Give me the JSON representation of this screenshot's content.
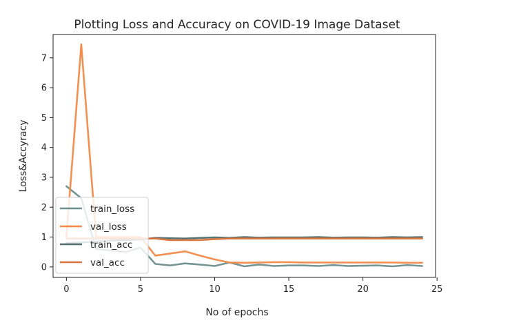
{
  "chart_data": {
    "type": "line",
    "title": "Plotting Loss and Accuracy on COVID-19 Image Dataset",
    "xlabel": "No of epochs",
    "ylabel": "Loss&Accyracy",
    "xlim": [
      -0.9,
      24.9
    ],
    "ylim": [
      -0.35,
      7.78
    ],
    "xticks": [
      0,
      5,
      10,
      15,
      20,
      25
    ],
    "yticks": [
      0,
      1,
      2,
      3,
      4,
      5,
      6,
      7
    ],
    "grid": false,
    "legend_position": "lower-left",
    "x": [
      0,
      1,
      2,
      3,
      4,
      5,
      6,
      7,
      8,
      9,
      10,
      11,
      12,
      13,
      14,
      15,
      16,
      17,
      18,
      19,
      20,
      21,
      22,
      23,
      24
    ],
    "series": [
      {
        "name": "train_loss",
        "color": "#6e8f8f",
        "values": [
          2.7,
          2.3,
          0.6,
          0.55,
          0.5,
          0.65,
          0.1,
          0.05,
          0.12,
          0.08,
          0.03,
          0.15,
          0.02,
          0.08,
          0.03,
          0.05,
          0.05,
          0.03,
          0.06,
          0.03,
          0.04,
          0.05,
          0.02,
          0.06,
          0.03
        ]
      },
      {
        "name": "val_loss",
        "color": "#f08a47",
        "values": [
          1.0,
          7.45,
          1.0,
          1.0,
          1.0,
          1.0,
          0.38,
          0.45,
          0.52,
          0.38,
          0.25,
          0.15,
          0.14,
          0.15,
          0.16,
          0.16,
          0.15,
          0.15,
          0.15,
          0.15,
          0.15,
          0.15,
          0.15,
          0.14,
          0.14
        ]
      },
      {
        "name": "train_acc",
        "color": "#4f6b6b",
        "values": [
          0.8,
          0.82,
          0.85,
          0.88,
          0.9,
          0.92,
          0.97,
          0.96,
          0.95,
          0.97,
          0.99,
          0.97,
          1.0,
          0.98,
          0.99,
          0.99,
          0.99,
          1.0,
          0.98,
          0.99,
          0.99,
          0.98,
          1.0,
          0.99,
          1.0
        ]
      },
      {
        "name": "val_acc",
        "color": "#d8723a",
        "values": [
          0.95,
          0.95,
          0.95,
          0.95,
          0.95,
          0.95,
          0.95,
          0.9,
          0.9,
          0.9,
          0.93,
          0.95,
          0.95,
          0.95,
          0.95,
          0.95,
          0.95,
          0.95,
          0.95,
          0.95,
          0.95,
          0.95,
          0.95,
          0.95,
          0.95
        ]
      }
    ]
  }
}
